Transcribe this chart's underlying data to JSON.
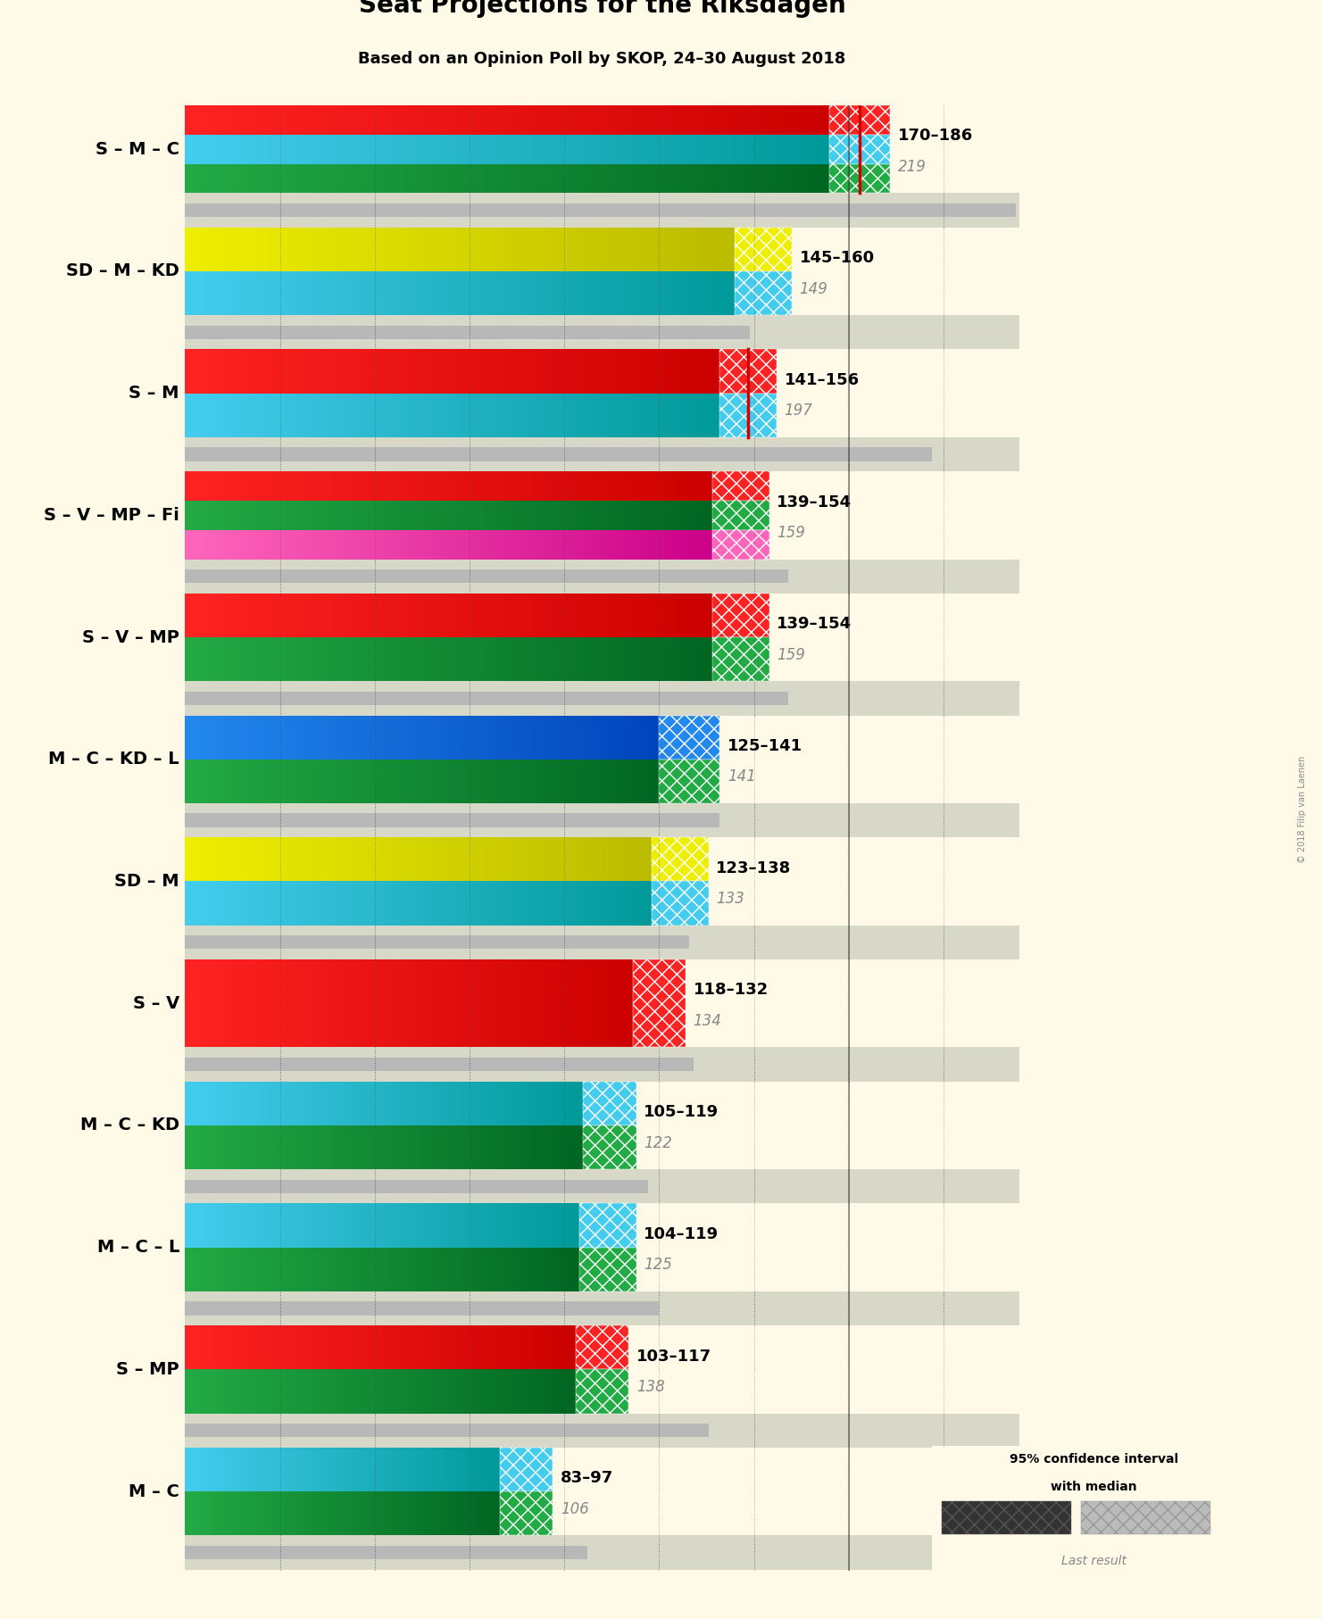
{
  "title": "Seat Projections for the Riksdagen",
  "subtitle": "Based on an Opinion Poll by SKOP, 24–30 August 2018",
  "copyright": "© 2018 Filip van Laenen",
  "background_color": "#FFFAE8",
  "bar_bg_color": "#D8D8C8",
  "coalitions": [
    {
      "label": "S – M – C",
      "low": 170,
      "high": 186,
      "last": 219,
      "has_median_line": true,
      "bar_colors": [
        [
          "#FF2222",
          "#CC0000"
        ],
        [
          "#44CCEE",
          "#009999"
        ],
        [
          "#22AA44",
          "#006622"
        ]
      ],
      "ci_colors": [
        "#FF2222",
        "#44CCEE",
        "#22AA44"
      ]
    },
    {
      "label": "SD – M – KD",
      "low": 145,
      "high": 160,
      "last": 149,
      "has_median_line": false,
      "bar_colors": [
        [
          "#EEEE00",
          "#BBBB00"
        ],
        [
          "#44CCEE",
          "#009999"
        ]
      ],
      "ci_colors": [
        "#EEEE00",
        "#44CCEE"
      ]
    },
    {
      "label": "S – M",
      "low": 141,
      "high": 156,
      "last": 197,
      "has_median_line": true,
      "bar_colors": [
        [
          "#FF2222",
          "#CC0000"
        ],
        [
          "#44CCEE",
          "#009999"
        ]
      ],
      "ci_colors": [
        "#FF2222",
        "#44CCEE"
      ]
    },
    {
      "label": "S – V – MP – Fi",
      "low": 139,
      "high": 154,
      "last": 159,
      "has_median_line": false,
      "bar_colors": [
        [
          "#FF2222",
          "#CC0000"
        ],
        [
          "#22AA44",
          "#006622"
        ],
        [
          "#FF66BB",
          "#CC0088"
        ]
      ],
      "ci_colors": [
        "#FF2222",
        "#22AA44",
        "#FF66BB"
      ]
    },
    {
      "label": "S – V – MP",
      "low": 139,
      "high": 154,
      "last": 159,
      "has_median_line": false,
      "bar_colors": [
        [
          "#FF2222",
          "#CC0000"
        ],
        [
          "#22AA44",
          "#006622"
        ]
      ],
      "ci_colors": [
        "#FF2222",
        "#22AA44"
      ]
    },
    {
      "label": "M – C – KD – L",
      "low": 125,
      "high": 141,
      "last": 141,
      "has_median_line": false,
      "bar_colors": [
        [
          "#2288EE",
          "#0044BB"
        ],
        [
          "#22AA44",
          "#006622"
        ]
      ],
      "ci_colors": [
        "#2288EE",
        "#22AA44"
      ]
    },
    {
      "label": "SD – M",
      "low": 123,
      "high": 138,
      "last": 133,
      "has_median_line": false,
      "bar_colors": [
        [
          "#EEEE00",
          "#BBBB00"
        ],
        [
          "#44CCEE",
          "#009999"
        ]
      ],
      "ci_colors": [
        "#EEEE00",
        "#44CCEE"
      ]
    },
    {
      "label": "S – V",
      "low": 118,
      "high": 132,
      "last": 134,
      "has_median_line": false,
      "bar_colors": [
        [
          "#FF2222",
          "#CC0000"
        ]
      ],
      "ci_colors": [
        "#FF2222"
      ]
    },
    {
      "label": "M – C – KD",
      "low": 105,
      "high": 119,
      "last": 122,
      "has_median_line": false,
      "bar_colors": [
        [
          "#44CCEE",
          "#009999"
        ],
        [
          "#22AA44",
          "#006622"
        ]
      ],
      "ci_colors": [
        "#44CCEE",
        "#22AA44"
      ]
    },
    {
      "label": "M – C – L",
      "low": 104,
      "high": 119,
      "last": 125,
      "has_median_line": false,
      "bar_colors": [
        [
          "#44CCEE",
          "#009999"
        ],
        [
          "#22AA44",
          "#006622"
        ]
      ],
      "ci_colors": [
        "#44CCEE",
        "#22AA44"
      ]
    },
    {
      "label": "S – MP",
      "low": 103,
      "high": 117,
      "last": 138,
      "has_median_line": false,
      "bar_colors": [
        [
          "#FF2222",
          "#CC0000"
        ],
        [
          "#22AA44",
          "#006622"
        ]
      ],
      "ci_colors": [
        "#FF2222",
        "#22AA44"
      ]
    },
    {
      "label": "M – C",
      "low": 83,
      "high": 97,
      "last": 106,
      "has_median_line": false,
      "bar_colors": [
        [
          "#44CCEE",
          "#009999"
        ],
        [
          "#22AA44",
          "#006622"
        ]
      ],
      "ci_colors": [
        "#44CCEE",
        "#22AA44"
      ]
    }
  ],
  "x_max": 220,
  "x_min": 0,
  "grid_ticks": [
    0,
    25,
    50,
    75,
    100,
    125,
    150,
    175,
    200
  ],
  "majority_line": 175
}
